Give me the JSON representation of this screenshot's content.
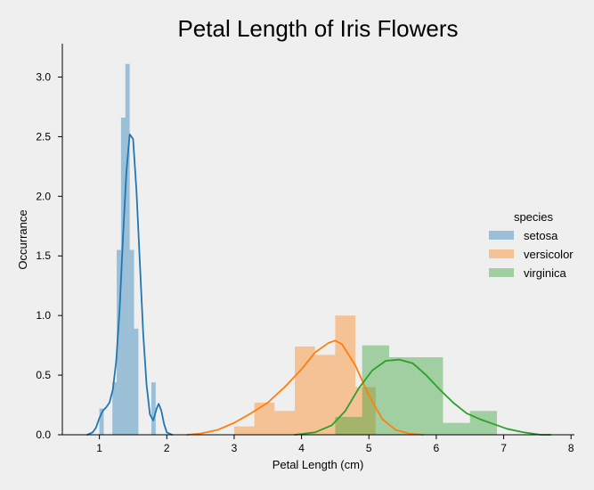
{
  "chart_data": {
    "type": "histogram+kde",
    "title": "Petal Length of Iris Flowers",
    "xlabel": "Petal Length (cm)",
    "ylabel": "Occurrance",
    "xlim": [
      0.45,
      8.05
    ],
    "ylim": [
      0,
      3.28
    ],
    "xticks": [
      1,
      2,
      3,
      4,
      5,
      6,
      7,
      8
    ],
    "yticks": [
      0.0,
      0.5,
      1.0,
      1.5,
      2.0,
      2.5,
      3.0
    ],
    "ytick_labels": [
      "0.0",
      "0.5",
      "1.0",
      "1.5",
      "2.0",
      "2.5",
      "3.0"
    ],
    "legend": {
      "title": "species",
      "placement": "center-right, outside axes",
      "entries": [
        "setosa",
        "versicolor",
        "virginica"
      ]
    },
    "series": [
      {
        "name": "setosa",
        "color": "#1f77b4",
        "bar_alpha": 0.4,
        "bin_edges": [
          1.0,
          1.0643,
          1.1286,
          1.1929,
          1.2571,
          1.3214,
          1.3857,
          1.45,
          1.5143,
          1.5786,
          1.6429,
          1.7071,
          1.7714,
          1.8357,
          1.9
        ],
        "heights": [
          0.22,
          0.0,
          0.0,
          0.44,
          1.55,
          2.66,
          3.11,
          1.55,
          0.89,
          0.0,
          0.0,
          0.0,
          0.44,
          0.0
        ],
        "kde": [
          [
            0.82,
            0.0
          ],
          [
            0.9,
            0.02
          ],
          [
            0.95,
            0.06
          ],
          [
            1.0,
            0.14
          ],
          [
            1.05,
            0.2
          ],
          [
            1.1,
            0.23
          ],
          [
            1.15,
            0.27
          ],
          [
            1.2,
            0.38
          ],
          [
            1.25,
            0.62
          ],
          [
            1.3,
            1.05
          ],
          [
            1.35,
            1.65
          ],
          [
            1.4,
            2.2
          ],
          [
            1.45,
            2.52
          ],
          [
            1.5,
            2.48
          ],
          [
            1.55,
            2.05
          ],
          [
            1.6,
            1.45
          ],
          [
            1.65,
            0.85
          ],
          [
            1.7,
            0.42
          ],
          [
            1.75,
            0.17
          ],
          [
            1.8,
            0.12
          ],
          [
            1.85,
            0.22
          ],
          [
            1.88,
            0.26
          ],
          [
            1.92,
            0.2
          ],
          [
            1.96,
            0.09
          ],
          [
            2.0,
            0.02
          ],
          [
            2.08,
            0.0
          ]
        ]
      },
      {
        "name": "versicolor",
        "color": "#ff7f0e",
        "bar_alpha": 0.4,
        "bin_edges": [
          3.0,
          3.3,
          3.6,
          3.9,
          4.2,
          4.5,
          4.8,
          5.1
        ],
        "heights": [
          0.07,
          0.27,
          0.2,
          0.74,
          0.67,
          1.0,
          0.4
        ],
        "kde": [
          [
            2.3,
            0.0
          ],
          [
            2.5,
            0.01
          ],
          [
            2.75,
            0.04
          ],
          [
            3.0,
            0.1
          ],
          [
            3.25,
            0.18
          ],
          [
            3.5,
            0.27
          ],
          [
            3.75,
            0.4
          ],
          [
            4.0,
            0.55
          ],
          [
            4.2,
            0.69
          ],
          [
            4.4,
            0.77
          ],
          [
            4.5,
            0.79
          ],
          [
            4.6,
            0.76
          ],
          [
            4.8,
            0.58
          ],
          [
            5.0,
            0.33
          ],
          [
            5.2,
            0.13
          ],
          [
            5.4,
            0.04
          ],
          [
            5.6,
            0.01
          ],
          [
            5.8,
            0.0
          ]
        ]
      },
      {
        "name": "virginica",
        "color": "#2ca02c",
        "bar_alpha": 0.4,
        "bin_edges": [
          4.5,
          4.9,
          5.3,
          5.7,
          6.1,
          6.5,
          6.9
        ],
        "heights": [
          0.15,
          0.75,
          0.65,
          0.65,
          0.1,
          0.2
        ],
        "kde": [
          [
            3.9,
            0.0
          ],
          [
            4.2,
            0.02
          ],
          [
            4.45,
            0.08
          ],
          [
            4.65,
            0.2
          ],
          [
            4.85,
            0.39
          ],
          [
            5.05,
            0.54
          ],
          [
            5.25,
            0.62
          ],
          [
            5.45,
            0.63
          ],
          [
            5.65,
            0.6
          ],
          [
            5.85,
            0.5
          ],
          [
            6.05,
            0.38
          ],
          [
            6.25,
            0.27
          ],
          [
            6.45,
            0.18
          ],
          [
            6.65,
            0.13
          ],
          [
            6.85,
            0.09
          ],
          [
            7.05,
            0.05
          ],
          [
            7.3,
            0.02
          ],
          [
            7.55,
            0.0
          ],
          [
            7.7,
            0.0
          ]
        ]
      }
    ]
  }
}
